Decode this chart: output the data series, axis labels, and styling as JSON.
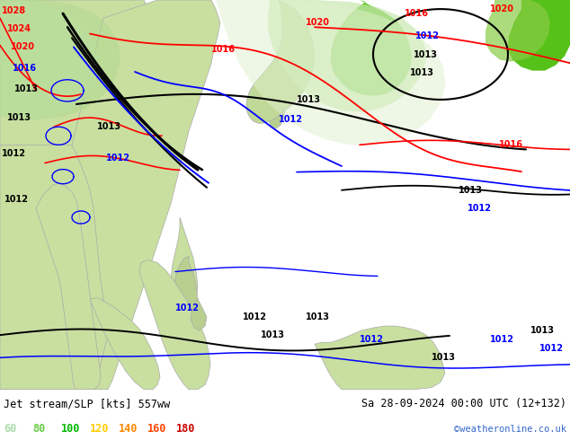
{
  "title_left": "Jet stream/SLP [kts] 557ww",
  "title_right": "Sa 28-09-2024 00:00 UTC (12+132)",
  "credit": "©weatheronline.co.uk",
  "legend_values": [
    "60",
    "80",
    "100",
    "120",
    "140",
    "160",
    "180"
  ],
  "legend_colors": [
    "#aaddaa",
    "#66cc44",
    "#00bb00",
    "#ffcc00",
    "#ff8800",
    "#ff4400",
    "#cc0000"
  ],
  "bg_color": "#c8c8c8",
  "ocean_color": "#d8d8d8",
  "land_light": "#c8dfa0",
  "land_dark": "#90c860",
  "land_vdark": "#44aa00",
  "bottom_bg": "#ffffff",
  "title_color": "#000000",
  "credit_color": "#3366cc",
  "figsize": [
    6.34,
    4.9
  ],
  "dpi": 100
}
